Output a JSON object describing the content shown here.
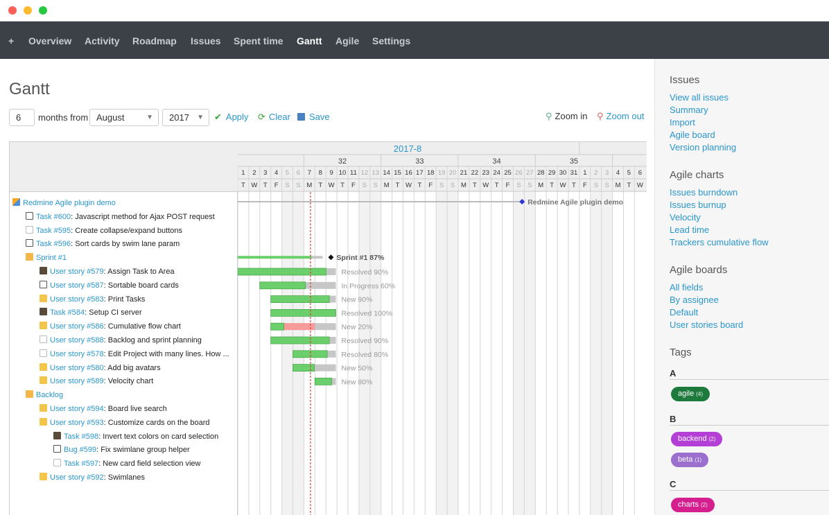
{
  "nav": {
    "items": [
      "+",
      "Overview",
      "Activity",
      "Roadmap",
      "Issues",
      "Spent time",
      "Gantt",
      "Agile",
      "Settings"
    ],
    "active": "Gantt"
  },
  "page": {
    "title": "Gantt"
  },
  "controls": {
    "months_value": "6",
    "months_from_label": "months from",
    "month_selected": "August",
    "year_selected": "2017",
    "apply_label": "Apply",
    "clear_label": "Clear",
    "save_label": "Save",
    "zoom_in_label": "Zoom in",
    "zoom_out_label": "Zoom out"
  },
  "gantt": {
    "month_label": "2017-8",
    "weeks": [
      "32",
      "33",
      "34",
      "35"
    ],
    "days": [
      "1",
      "2",
      "3",
      "4",
      "5",
      "6",
      "7",
      "8",
      "9",
      "10",
      "11",
      "12",
      "13",
      "14",
      "15",
      "16",
      "17",
      "18",
      "19",
      "20",
      "21",
      "22",
      "23",
      "24",
      "25",
      "26",
      "27",
      "28",
      "29",
      "30",
      "31",
      "1",
      "2",
      "3",
      "4",
      "5",
      "6"
    ],
    "weekdays": [
      "T",
      "W",
      "T",
      "F",
      "S",
      "S",
      "M",
      "T",
      "W",
      "T",
      "F",
      "S",
      "S",
      "M",
      "T",
      "W",
      "T",
      "F",
      "S",
      "S",
      "M",
      "T",
      "W",
      "T",
      "F",
      "S",
      "S",
      "M",
      "T",
      "W",
      "T",
      "F",
      "S",
      "S",
      "M",
      "T",
      "W"
    ],
    "weekend_indexes": [
      4,
      5,
      11,
      12,
      18,
      19,
      25,
      26,
      32,
      33
    ],
    "today_index": 6.6,
    "rows": [
      {
        "indent": 0,
        "icon": "project-icon",
        "link": "Redmine Agile plugin demo",
        "text": "",
        "type": "project",
        "bar_label": "Redmine Agile plugin demo",
        "milestone_day": 25.8
      },
      {
        "indent": 1,
        "icon": "bug-icon",
        "link": "Task #600",
        "text": ": Javascript method for Ajax POST request"
      },
      {
        "indent": 1,
        "icon": "pin-icon",
        "link": "Task #595",
        "text": ": Create collapse/expand buttons"
      },
      {
        "indent": 1,
        "icon": "bug-icon",
        "link": "Task #596",
        "text": ": Sort cards by swim lane param"
      },
      {
        "indent": 1,
        "icon": "version-icon",
        "link": "Sprint #1",
        "text": "",
        "type": "version",
        "start": 0,
        "end": 7.7,
        "done": 0.87,
        "bar_label": "Sprint #1 87%"
      },
      {
        "indent": 2,
        "icon": "avatar-icon",
        "link": "User story #579",
        "text": ": Assign Task to Area",
        "start": 0,
        "end": 8.9,
        "done": 0.9,
        "bar_label": "Resolved 90%"
      },
      {
        "indent": 2,
        "icon": "bug-icon",
        "link": "User story #587",
        "text": ": Sortable board cards",
        "start": 2,
        "end": 8.9,
        "done": 0.6,
        "bar_label": "In Progress 60%"
      },
      {
        "indent": 2,
        "icon": "folder-icon",
        "link": "User story #583",
        "text": ": Print Tasks",
        "start": 3,
        "end": 8.9,
        "done": 0.9,
        "bar_label": "New 90%"
      },
      {
        "indent": 2,
        "icon": "avatar-icon",
        "link": "Task #584",
        "text": ": Setup CI server",
        "start": 3,
        "end": 8.9,
        "done": 1.0,
        "bar_label": "Resolved 100%"
      },
      {
        "indent": 2,
        "icon": "folder-icon",
        "link": "User story #586",
        "text": ": Cumulative flow chart",
        "start": 3,
        "end": 8.9,
        "done": 0.2,
        "late_until": 7.0,
        "bar_label": "New 20%"
      },
      {
        "indent": 2,
        "icon": "pin-icon",
        "link": "User story #588",
        "text": ": Backlog and sprint planning",
        "start": 3,
        "end": 8.9,
        "done": 0.9,
        "bar_label": "Resolved 90%"
      },
      {
        "indent": 2,
        "icon": "pin-icon",
        "link": "User story #578",
        "text": ": Edit Project with many lines. How ...",
        "start": 5,
        "end": 8.9,
        "done": 0.8,
        "bar_label": "Resolved 80%"
      },
      {
        "indent": 2,
        "icon": "folder-icon",
        "link": "User story #580",
        "text": ": Add big avatars",
        "start": 5,
        "end": 8.9,
        "done": 0.5,
        "bar_label": "New 50%"
      },
      {
        "indent": 2,
        "icon": "folder-icon",
        "link": "User story #589",
        "text": ": Velocity chart",
        "start": 7,
        "end": 8.9,
        "done": 0.8,
        "bar_label": "New 80%"
      },
      {
        "indent": 1,
        "icon": "version-icon",
        "link": "Backlog",
        "text": "",
        "type": "version"
      },
      {
        "indent": 2,
        "icon": "folder-icon",
        "link": "User story #594",
        "text": ": Board live search"
      },
      {
        "indent": 2,
        "icon": "folder-icon",
        "link": "User story #593",
        "text": ": Customize cards on the board"
      },
      {
        "indent": 3,
        "icon": "avatar-icon",
        "link": "Task #598",
        "text": ": Invert text colors on card selection"
      },
      {
        "indent": 3,
        "icon": "bug-icon",
        "link": "Bug #599",
        "text": ": Fix swimlane group helper"
      },
      {
        "indent": 3,
        "icon": "pin-icon",
        "link": "Task #597",
        "text": ": New card field selection view"
      },
      {
        "indent": 2,
        "icon": "folder-icon",
        "link": "User story #592",
        "text": ": Swimlanes"
      }
    ]
  },
  "sidebar": {
    "issues_heading": "Issues",
    "issues_links": [
      "View all issues",
      "Summary",
      "Import",
      "Agile board",
      "Version planning"
    ],
    "charts_heading": "Agile charts",
    "charts_links": [
      "Issues burndown",
      "Issues burnup",
      "Velocity",
      "Lead time",
      "Trackers cumulative flow"
    ],
    "boards_heading": "Agile boards",
    "boards_links": [
      "All fields",
      "By assignee",
      "Default",
      "User stories board"
    ],
    "tags_heading": "Tags",
    "tag_groups": [
      {
        "letter": "A",
        "tags": [
          {
            "name": "agile",
            "count": "(4)",
            "color": "#1e7a3c"
          }
        ]
      },
      {
        "letter": "B",
        "tags": [
          {
            "name": "backend",
            "count": "(2)",
            "color": "#b43fd6"
          },
          {
            "name": "beta",
            "count": "(1)",
            "color": "#9a6fce"
          }
        ]
      },
      {
        "letter": "C",
        "tags": [
          {
            "name": "charts",
            "count": "(2)",
            "color": "#d61f8f"
          }
        ]
      }
    ]
  },
  "colors": {
    "accent": "#2996cc",
    "nav_bg": "#3b4147",
    "done": "#6bd06b",
    "todo": "#c7c7c7",
    "late": "#f79a9a",
    "today": "#e23d3d",
    "milestone": "#2b35d6"
  }
}
